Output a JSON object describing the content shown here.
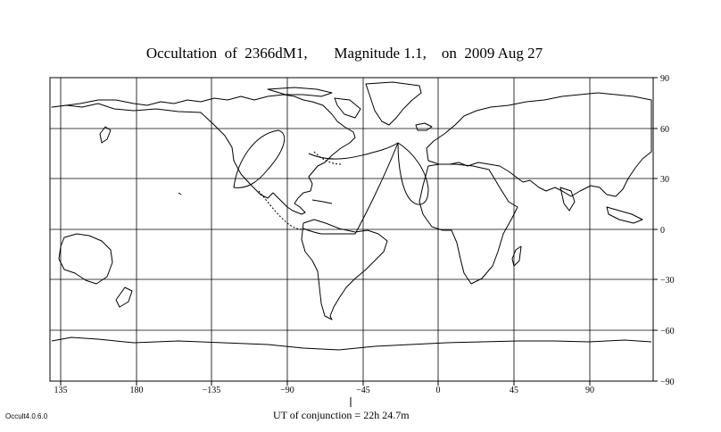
{
  "title": "Occultation  of  2366dM1,       Magnitude 1.1,    on  2009 Aug 27",
  "map": {
    "projection": "equirectangular",
    "central_longitude": -45,
    "gridlines": true,
    "longitude_ticks": [
      "135",
      "180",
      "−135",
      "−90",
      "−45",
      "0",
      "45",
      "90"
    ],
    "latitude_ticks": [
      "90",
      "60",
      "30",
      "0",
      "−30",
      "−60",
      "−90"
    ]
  },
  "conjunction": "UT of conjunction = 22h 24.7m",
  "version": "Occult4.0.6.0",
  "colors": {
    "background": "#ffffff",
    "lines": "#000000"
  }
}
